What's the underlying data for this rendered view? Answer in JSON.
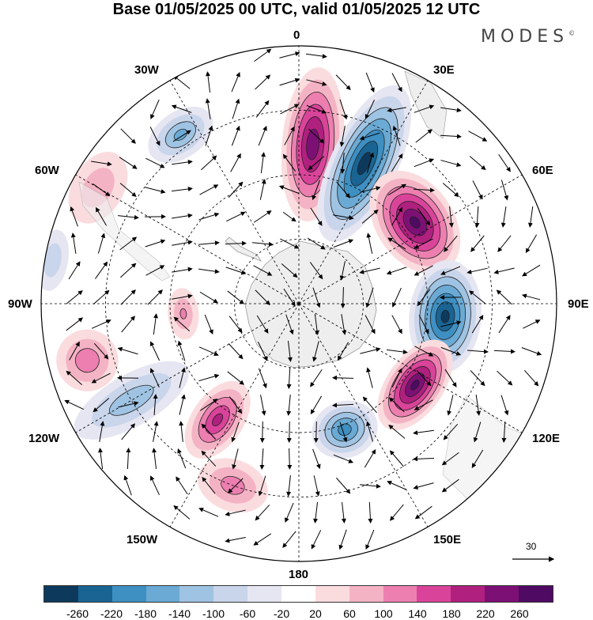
{
  "title": "Base 01/05/2025 00 UTC, valid 01/05/2025 12 UTC",
  "brand": "MODES",
  "brand_mark": "©",
  "longitude_labels": {
    "n": "0",
    "ne": "30E",
    "e60": "60E",
    "e90": "90E",
    "e120": "120E",
    "e150": "150E",
    "s": "180",
    "w150": "150W",
    "w120": "120W",
    "w90": "90W",
    "w60": "60W",
    "w30": "30W"
  },
  "reference_vector": "30",
  "colorbar": {
    "colors": [
      "#0d3a5c",
      "#1a6493",
      "#3e8fc2",
      "#6aaad4",
      "#9fc3e2",
      "#c9d5ea",
      "#e6e6f2",
      "#ffffff",
      "#fadcdf",
      "#f4b3c4",
      "#ec7fb0",
      "#d9449a",
      "#b0207f",
      "#7d1075",
      "#4f0a63"
    ],
    "ticks": [
      "-260",
      "-220",
      "-180",
      "-140",
      "-100",
      "-60",
      "-20",
      "20",
      "60",
      "100",
      "140",
      "180",
      "220",
      "260"
    ]
  },
  "map": {
    "land_color": "#eeeeee",
    "anomalies": [
      {
        "lon": 5,
        "colat": 0.62,
        "value": 230,
        "rx": 0.12,
        "ry": 0.3
      },
      {
        "lon": 25,
        "colat": 0.6,
        "value": -260,
        "rx": 0.13,
        "ry": 0.33
      },
      {
        "lon": 55,
        "colat": 0.55,
        "value": 250,
        "rx": 0.22,
        "ry": 0.15
      },
      {
        "lon": 95,
        "colat": 0.57,
        "value": -250,
        "rx": 0.22,
        "ry": 0.14
      },
      {
        "lon": 125,
        "colat": 0.55,
        "value": 250,
        "rx": 0.2,
        "ry": 0.11
      },
      {
        "lon": 160,
        "colat": 0.52,
        "value": -180,
        "rx": 0.13,
        "ry": 0.11
      },
      {
        "lon": -160,
        "colat": 0.75,
        "value": 100,
        "rx": 0.14,
        "ry": 0.1
      },
      {
        "lon": -145,
        "colat": 0.55,
        "value": 170,
        "rx": 0.1,
        "ry": 0.17
      },
      {
        "lon": -120,
        "colat": 0.75,
        "value": -110,
        "rx": 0.1,
        "ry": 0.25
      },
      {
        "lon": -105,
        "colat": 0.85,
        "value": 110,
        "rx": 0.12,
        "ry": 0.12
      },
      {
        "lon": -95,
        "colat": 0.45,
        "value": 80,
        "rx": 0.1,
        "ry": 0.06
      },
      {
        "lon": -80,
        "colat": 0.97,
        "value": -70,
        "rx": 0.12,
        "ry": 0.06
      },
      {
        "lon": -60,
        "colat": 0.9,
        "value": 70,
        "rx": 0.15,
        "ry": 0.1
      },
      {
        "lon": -35,
        "colat": 0.8,
        "value": -130,
        "rx": 0.14,
        "ry": 0.09
      }
    ]
  }
}
